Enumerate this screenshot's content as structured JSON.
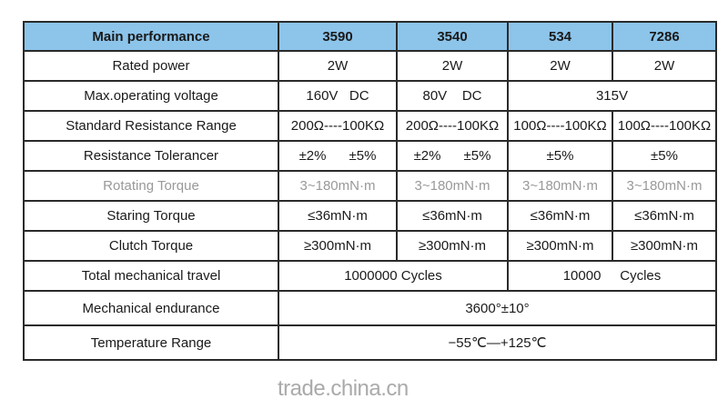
{
  "header": [
    "Main performance",
    "3590",
    "3540",
    "534",
    "7286"
  ],
  "rows": {
    "rated_power": {
      "label": "Rated power",
      "values": [
        "2W",
        "2W",
        "2W",
        "2W"
      ]
    },
    "voltage": {
      "label": "Max.operating voltage",
      "values": [
        "160V   DC",
        "80V    DC",
        "315V"
      ]
    },
    "resistance": {
      "label": "Standard Resistance Range",
      "values": [
        "200Ω----100KΩ",
        "200Ω----100KΩ",
        "100Ω----100KΩ",
        "100Ω----100KΩ"
      ]
    },
    "tolerance": {
      "label": "Resistance Tolerancer",
      "values": [
        "±2%      ±5%",
        "±2%      ±5%",
        "±5%",
        "±5%"
      ]
    },
    "rotating": {
      "label": "Rotating Torque",
      "values": [
        "3~180mN·m",
        "3~180mN·m",
        "3~180mN·m",
        "3~180mN·m"
      ]
    },
    "starting": {
      "label": "Staring Torque",
      "values": [
        "≤36mN·m",
        "≤36mN·m",
        "≤36mN·m",
        "≤36mN·m"
      ]
    },
    "clutch": {
      "label": "Clutch Torque",
      "values": [
        "≥300mN·m",
        "≥300mN·m",
        "≥300mN·m",
        "≥300mN·m"
      ]
    },
    "travel": {
      "label": "Total mechanical travel",
      "values": [
        "1000000 Cycles",
        "10000     Cycles"
      ]
    },
    "endurance": {
      "label": "Mechanical endurance",
      "values": [
        "3600°±10°"
      ]
    },
    "temperature": {
      "label": "Temperature Range",
      "values": [
        "−55℃—+125℃"
      ]
    }
  },
  "watermark": "trade.china.cn",
  "colors": {
    "header_bg": "#8cc4ea",
    "border": "#2a2a2a"
  }
}
